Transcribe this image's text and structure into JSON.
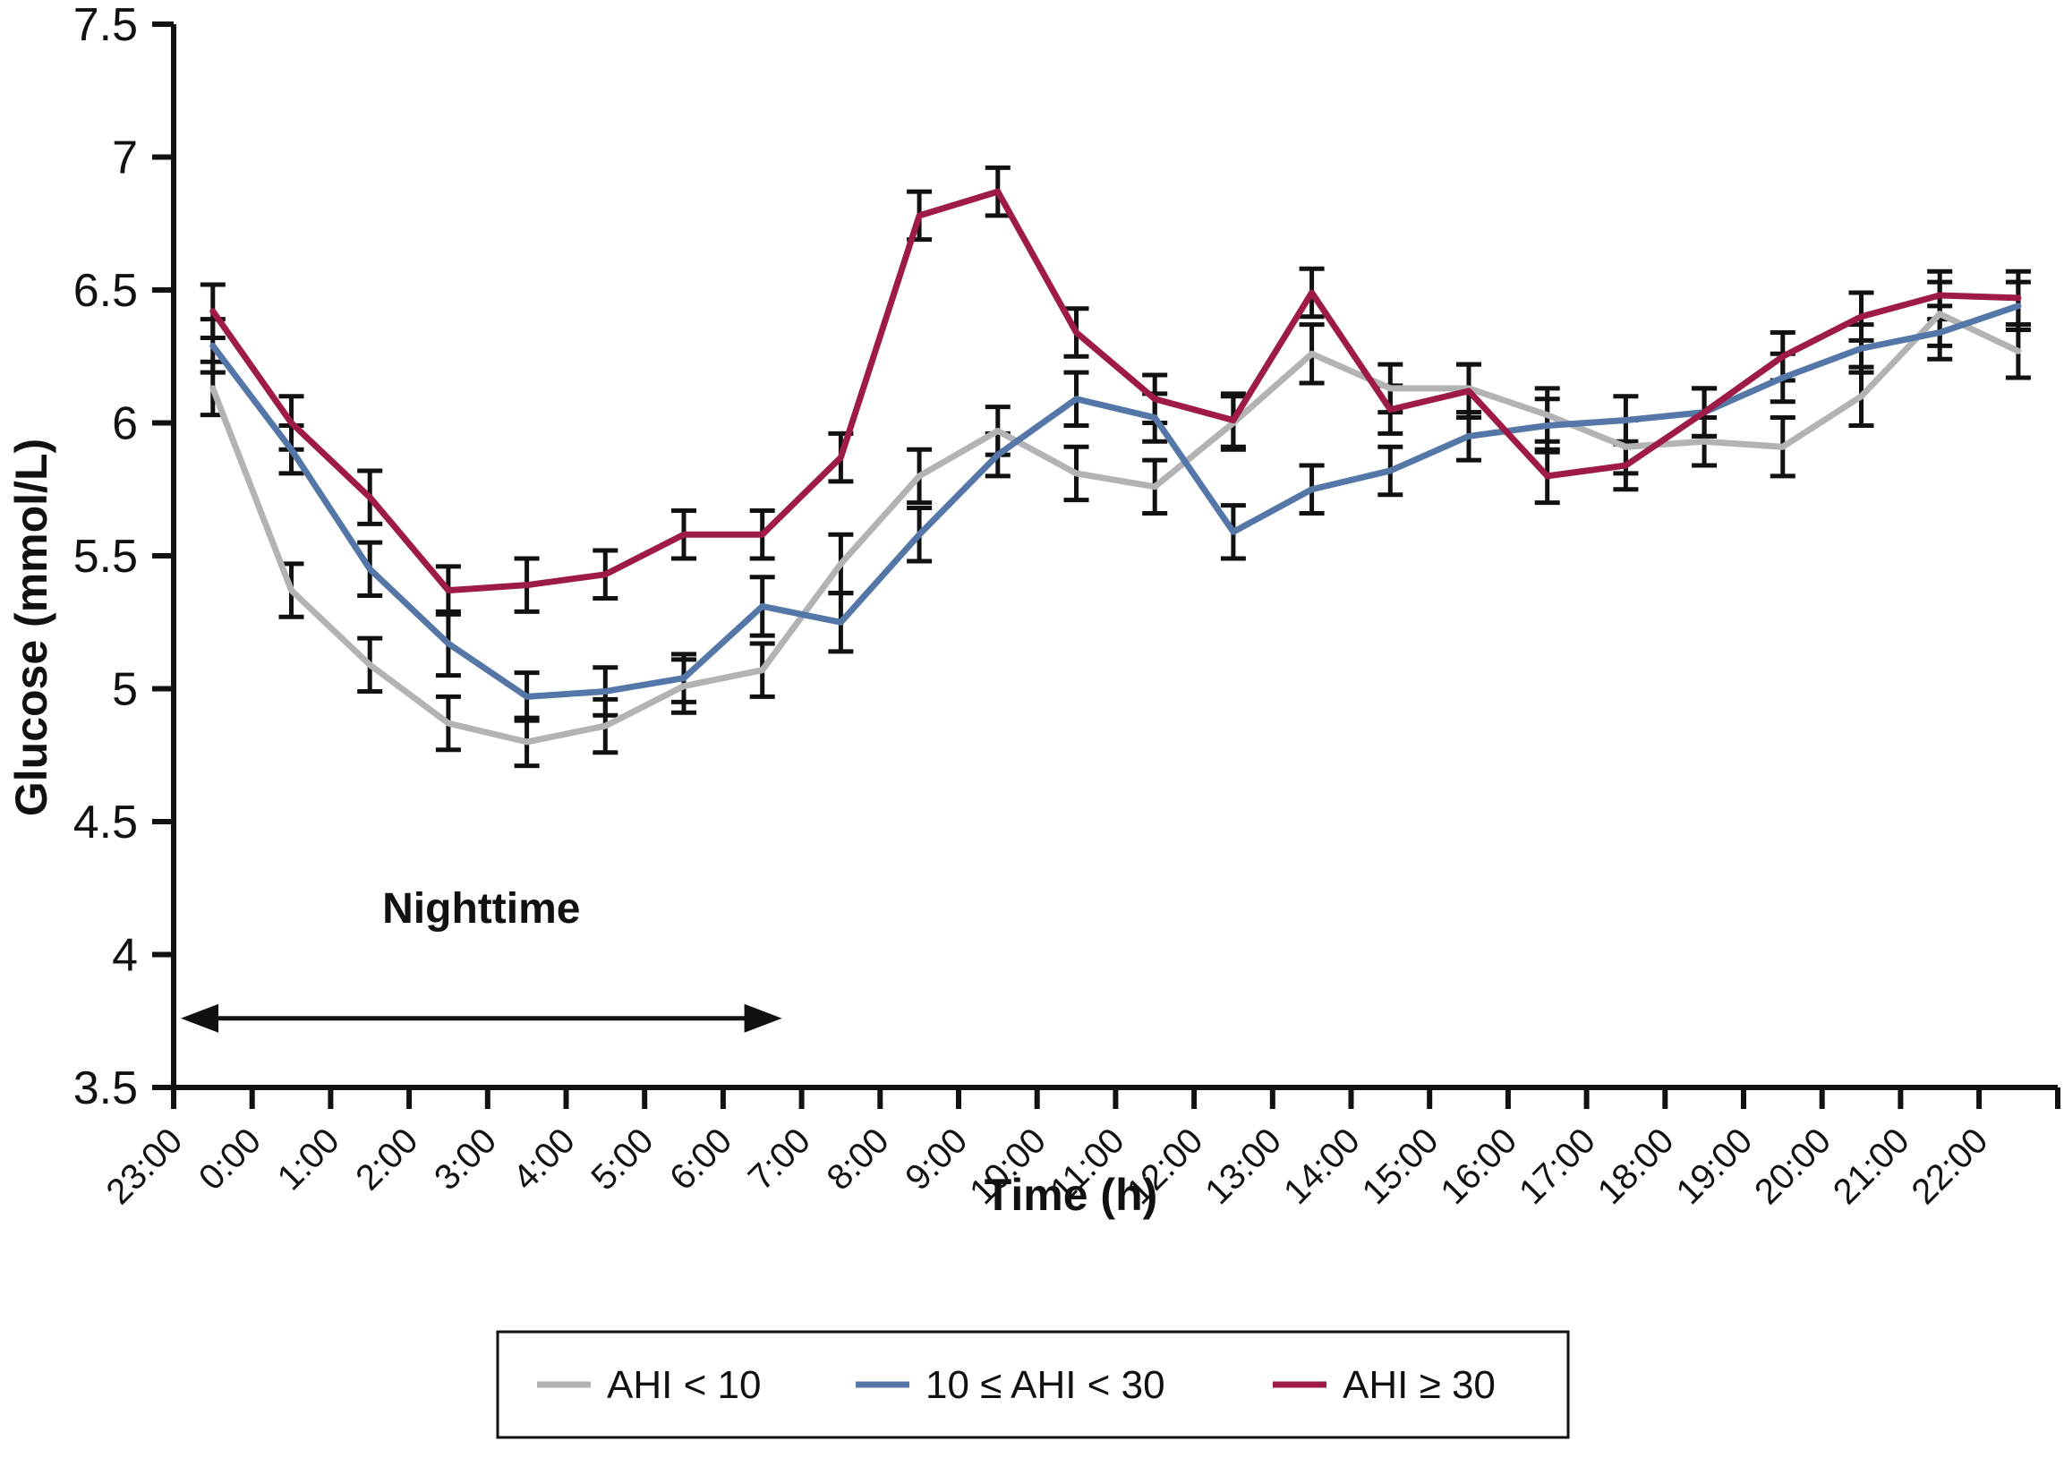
{
  "figure": {
    "background": "#ffffff",
    "axis_color": "#111111"
  },
  "chart_data": {
    "type": "line",
    "title": "",
    "xlabel": "Time (h)",
    "ylabel": "Glucose (mmol/L)",
    "ylim": [
      3.5,
      7.5
    ],
    "y_ticks": [
      "7.5",
      "7",
      "6.5",
      "6",
      "5.5",
      "5",
      "4.5",
      "4",
      "3.5"
    ],
    "grid": false,
    "legend_position": "bottom-center",
    "categories": [
      "23:00",
      "0:00",
      "1:00",
      "2:00",
      "3:00",
      "4:00",
      "5:00",
      "6:00",
      "7:00",
      "8:00",
      "9:00",
      "10:00",
      "11:00",
      "12:00",
      "13:00",
      "14:00",
      "15:00",
      "16:00",
      "17:00",
      "18:00",
      "19:00",
      "20:00",
      "21:00",
      "22:00"
    ],
    "annotations": [
      {
        "text": "Nighttime",
        "type": "double-headed-arrow",
        "x_start_label": "23:00",
        "x_end_label": "7:00",
        "y_value": 3.76,
        "label_y_value": 4.12
      }
    ],
    "series": [
      {
        "label": "AHI < 10",
        "color": "#b3b3b5",
        "values": [
          6.13,
          5.37,
          5.09,
          4.87,
          4.8,
          4.86,
          5.01,
          5.07,
          5.47,
          5.8,
          5.97,
          5.81,
          5.76,
          6.0,
          6.26,
          6.13,
          6.13,
          6.03,
          5.91,
          5.93,
          5.91,
          6.1,
          6.41,
          6.27
        ],
        "err": [
          0.1,
          0.1,
          0.1,
          0.1,
          0.09,
          0.1,
          0.1,
          0.1,
          0.11,
          0.1,
          0.09,
          0.1,
          0.1,
          0.1,
          0.11,
          0.09,
          0.09,
          0.1,
          0.1,
          0.09,
          0.11,
          0.11,
          0.12,
          0.1
        ]
      },
      {
        "label": "10 ≤ AHI < 30",
        "color": "#5577a8",
        "values": [
          6.29,
          5.9,
          5.45,
          5.17,
          4.97,
          4.99,
          5.04,
          5.31,
          5.25,
          5.58,
          5.88,
          6.09,
          6.02,
          5.59,
          5.75,
          5.82,
          5.95,
          5.99,
          6.01,
          6.04,
          6.17,
          6.28,
          6.34,
          6.44
        ],
        "err": [
          0.1,
          0.09,
          0.1,
          0.12,
          0.09,
          0.09,
          0.09,
          0.11,
          0.11,
          0.1,
          0.08,
          0.1,
          0.09,
          0.1,
          0.09,
          0.09,
          0.09,
          0.1,
          0.09,
          0.09,
          0.09,
          0.09,
          0.1,
          0.09
        ]
      },
      {
        "label": "AHI ≥ 30",
        "color": "#9e1a47",
        "values": [
          6.42,
          6.0,
          5.72,
          5.37,
          5.39,
          5.43,
          5.58,
          5.58,
          5.87,
          6.78,
          6.87,
          6.34,
          6.09,
          6.01,
          6.49,
          6.05,
          6.12,
          5.8,
          5.84,
          6.04,
          6.25,
          6.4,
          6.48,
          6.47
        ],
        "err": [
          0.1,
          0.1,
          0.1,
          0.09,
          0.1,
          0.09,
          0.09,
          0.09,
          0.09,
          0.09,
          0.09,
          0.09,
          0.09,
          0.1,
          0.09,
          0.09,
          0.1,
          0.1,
          0.09,
          0.09,
          0.09,
          0.09,
          0.09,
          0.1
        ]
      }
    ]
  }
}
